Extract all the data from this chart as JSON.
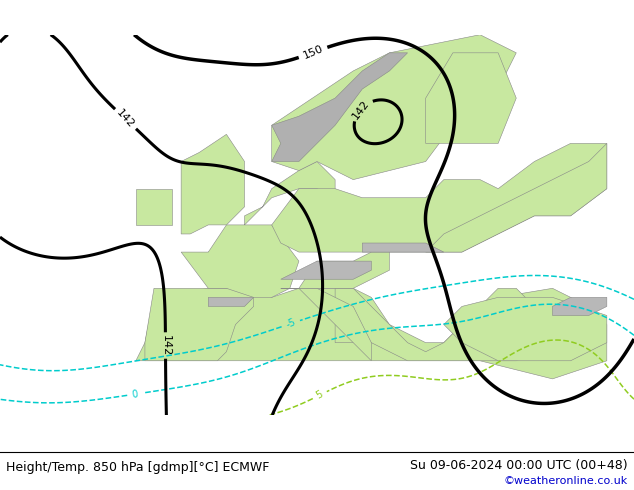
{
  "title_left": "Height/Temp. 850 hPa [gdmp][°C] ECMWF",
  "title_right": "Su 09-06-2024 00:00 UTC (00+48)",
  "credit": "©weatheronline.co.uk",
  "bg_land_color": "#c8e8a0",
  "bg_sea_color": "#d0d0d0",
  "border_color": "#888888",
  "bottom_bar_color": "#ffffff",
  "title_fontsize": 9,
  "credit_color": "#0000cc",
  "text_color": "#000000",
  "contour_height_color": "#000000",
  "temp_level_colors": {
    "-5": "#00cccc",
    "0": "#00cccc",
    "5": "#90cc30",
    "10": "#ffaa00",
    "15": "#ff8800",
    "20": "#ff2200",
    "25": "#cc00cc",
    "30": "#880088"
  }
}
